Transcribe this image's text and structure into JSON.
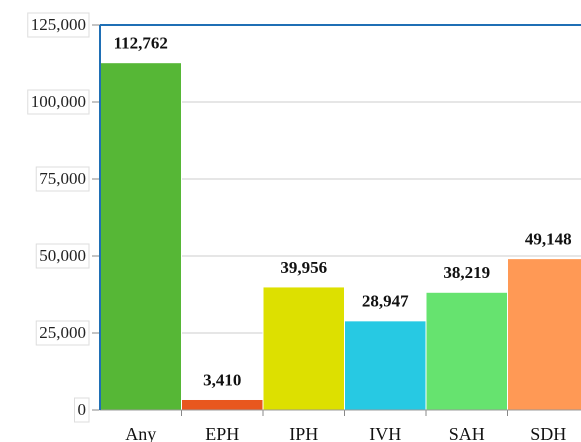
{
  "chart_data": {
    "type": "bar",
    "categories": [
      "Any",
      "EPH",
      "IPH",
      "IVH",
      "SAH",
      "SDH"
    ],
    "values": [
      112762,
      3410,
      39956,
      28947,
      38219,
      49148
    ],
    "value_labels": [
      "112,762",
      "3,410",
      "39,956",
      "28,947",
      "38,219",
      "49,148"
    ],
    "colors": [
      "#56b736",
      "#e8571e",
      "#dde000",
      "#27c9e3",
      "#66e36f",
      "#ff9955"
    ],
    "ylim": [
      0,
      125000
    ],
    "yticks": [
      0,
      {
        "value": 25000,
        "label": "25,000"
      },
      {
        "value": 50000,
        "label": "50,000"
      },
      {
        "value": 75000,
        "label": "75,000"
      },
      {
        "value": 100000,
        "label": "100,000"
      },
      {
        "value": 125000,
        "label": "125,000"
      }
    ],
    "grid": true
  }
}
